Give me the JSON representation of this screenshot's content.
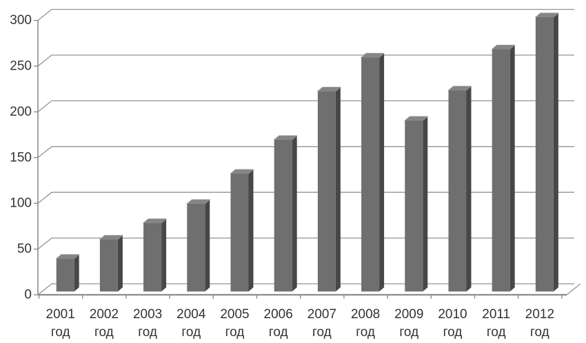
{
  "chart_data": {
    "type": "bar",
    "style": "3d-column",
    "title": "",
    "xlabel": "",
    "ylabel": "",
    "categories": [
      "2001",
      "2002",
      "2003",
      "2004",
      "2005",
      "2006",
      "2007",
      "2008",
      "2009",
      "2010",
      "2011",
      "2012"
    ],
    "category_suffix": "год",
    "values": [
      36,
      57,
      75,
      96,
      129,
      166,
      219,
      256,
      187,
      220,
      265,
      300
    ],
    "y_ticks": [
      0,
      50,
      100,
      150,
      200,
      250,
      300
    ],
    "ylim": [
      0,
      300
    ],
    "grid": true,
    "legend": false,
    "colors": {
      "bar_front": "#6f6f6f",
      "bar_top": "#858585",
      "bar_top_edge": "#9b9b9b",
      "bar_side": "#474747",
      "gridline": "#929292",
      "axis": "#8c8c8c",
      "text": "#333333",
      "background": "#ffffff"
    }
  }
}
